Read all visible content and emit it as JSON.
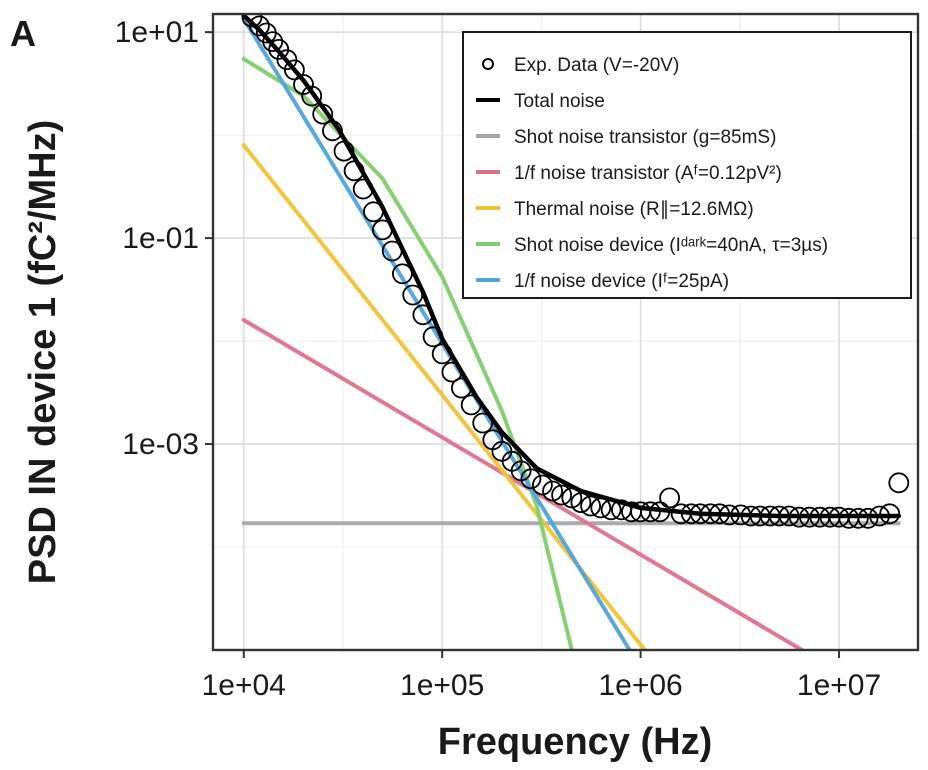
{
  "chart_data": {
    "type": "line",
    "panel_label": "A",
    "xlabel": "Frequency (Hz)",
    "ylabel": "PSD IN device 1 (fC²/MHz)",
    "x_scale": "log",
    "y_scale": "log",
    "xlim": [
      7000,
      25000000
    ],
    "ylim": [
      1e-05,
      15
    ],
    "x_ticks": [
      10000,
      100000,
      1000000,
      10000000
    ],
    "x_tick_labels": [
      "1e+04",
      "1e+05",
      "1e+06",
      "1e+07"
    ],
    "y_ticks": [
      0.001,
      0.1,
      10
    ],
    "y_tick_labels": [
      "1e-03",
      "1e-01",
      "1e+01"
    ],
    "grid": true,
    "legend_position": "top-right",
    "series": [
      {
        "name": "Exp. Data (V=-20V)",
        "kind": "scatter",
        "color": "#000000",
        "x": [
          11000,
          12000,
          13000,
          14000,
          15000,
          16500,
          18000,
          20000,
          22000,
          25000,
          28000,
          32000,
          36000,
          40000,
          45000,
          50000,
          56000,
          63000,
          71000,
          80000,
          90000,
          100000,
          112000,
          125000,
          140000,
          160000,
          180000,
          200000,
          225000,
          250000,
          280000,
          320000,
          360000,
          400000,
          450000,
          500000,
          560000,
          630000,
          710000,
          800000,
          900000,
          1000000,
          1120000,
          1250000,
          1400000,
          1600000,
          1800000,
          2000000,
          2250000,
          2500000,
          2800000,
          3200000,
          3600000,
          4000000,
          4500000,
          5000000,
          5600000,
          6300000,
          7100000,
          8000000,
          9000000,
          10000000,
          11200000,
          12500000,
          14000000,
          16000000,
          18000000,
          20000000
        ],
        "y": [
          14,
          11.5,
          9.8,
          8.1,
          6.8,
          5.4,
          4.3,
          3.1,
          2.4,
          1.6,
          1.1,
          0.7,
          0.45,
          0.3,
          0.18,
          0.12,
          0.075,
          0.045,
          0.028,
          0.018,
          0.011,
          0.0075,
          0.005,
          0.0035,
          0.0024,
          0.0016,
          0.0011,
          0.00085,
          0.00068,
          0.00055,
          0.00046,
          0.0004,
          0.00035,
          0.00032,
          0.0003,
          0.00027,
          0.00025,
          0.00024,
          0.00023,
          0.00023,
          0.00022,
          0.00022,
          0.00022,
          0.00022,
          0.0003,
          0.00021,
          0.00021,
          0.00021,
          0.00021,
          0.00021,
          0.000205,
          0.000205,
          0.0002,
          0.0002,
          0.0002,
          0.0002,
          0.0002,
          0.000195,
          0.000195,
          0.000195,
          0.000195,
          0.000195,
          0.00019,
          0.00019,
          0.00019,
          0.0002,
          0.00021,
          0.00042
        ]
      },
      {
        "name": "Total noise",
        "kind": "line",
        "color": "#000000",
        "x": [
          10000,
          12000,
          15000,
          20000,
          30000,
          50000,
          80000,
          100000,
          150000,
          200000,
          300000,
          500000,
          1000000,
          2000000,
          5000000,
          10000000,
          20000000
        ],
        "y": [
          14.5,
          10.5,
          6.5,
          3.4,
          1.15,
          0.2,
          0.03,
          0.0105,
          0.0028,
          0.0013,
          0.00058,
          0.00035,
          0.00024,
          0.00021,
          0.0002,
          0.0002,
          0.0002
        ]
      },
      {
        "name": "Shot noise transistor (g=85mS)",
        "kind": "line",
        "color": "#a6a6a6",
        "x": [
          10000,
          20000000
        ],
        "y": [
          0.00017,
          0.00017
        ]
      },
      {
        "name": "1/f noise transistor (Aᶠ=0.12pV²)",
        "kind": "line",
        "color": "#e07087",
        "x": [
          10000,
          6500000
        ],
        "y": [
          0.016,
          1e-05
        ]
      },
      {
        "name": "Thermal noise (R∥=12.6MΩ)",
        "kind": "line",
        "color": "#f2c230",
        "x": [
          10000,
          1050000
        ],
        "y": [
          0.8,
          1e-05
        ]
      },
      {
        "name": "Shot noise device (Iᵈᵃʳᵏ=40nA, τ=3µs)",
        "kind": "line",
        "color": "#7fce6a",
        "x": [
          10000,
          20000,
          50000,
          100000,
          200000,
          300000,
          450000
        ],
        "y": [
          5.5,
          2.4,
          0.38,
          0.042,
          0.0021,
          0.00025,
          1e-05
        ]
      },
      {
        "name": "1/f noise device (Iᶠ=25pA)",
        "kind": "line",
        "color": "#4fa3de",
        "x": [
          10000,
          880000
        ],
        "y": [
          13.5,
          1e-05
        ]
      }
    ],
    "legend_entries": [
      {
        "label": "Exp. Data (V=-20V)",
        "symbol": "circle",
        "color": "#000000"
      },
      {
        "label": "Total noise",
        "symbol": "line",
        "color": "#000000"
      },
      {
        "label": "Shot noise transistor (g=85mS)",
        "symbol": "line",
        "color": "#a6a6a6"
      },
      {
        "label": "1/f noise transistor (Aᶠ=0.12pV²)",
        "symbol": "line",
        "color": "#e07087"
      },
      {
        "label": "Thermal noise (R∥=12.6MΩ)",
        "symbol": "line",
        "color": "#f2c230"
      },
      {
        "label": "Shot noise device (Iᵈᵃʳᵏ=40nA, τ=3µs)",
        "symbol": "line",
        "color": "#7fce6a"
      },
      {
        "label": "1/f noise device (Iᶠ=25pA)",
        "symbol": "line",
        "color": "#4fa3de"
      }
    ]
  }
}
